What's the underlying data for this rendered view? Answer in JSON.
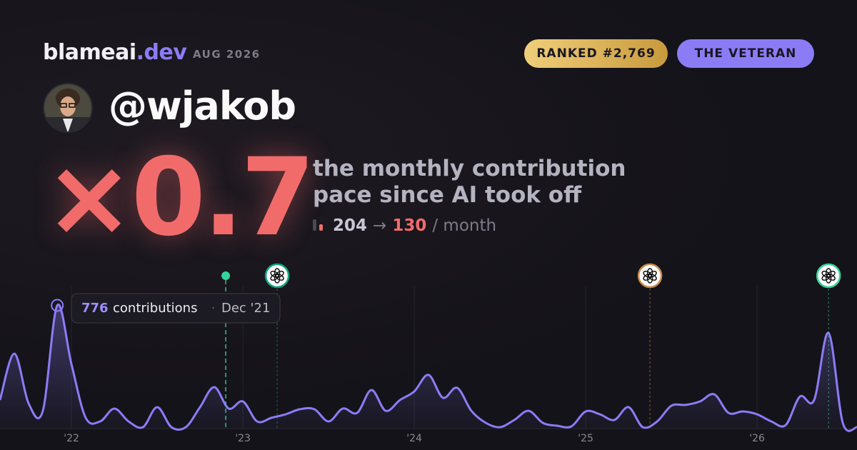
{
  "header": {
    "brand": "blameai",
    "brand_suffix": ".dev",
    "date": "AUG 2026",
    "rank": "RANKED #2,769",
    "tier": "THE VETERAN",
    "handle": "@wjakob"
  },
  "hero": {
    "multiplier": "×0.7",
    "line1": "the monthly contribution",
    "line2": "pace since AI took off",
    "before": 204,
    "arrow": "→",
    "after": 130,
    "unit": "/ month"
  },
  "chart_data": {
    "type": "area",
    "x": [
      2021.583,
      2021.667,
      2021.75,
      2021.833,
      2021.917,
      2022,
      2022.083,
      2022.167,
      2022.25,
      2022.333,
      2022.417,
      2022.5,
      2022.583,
      2022.667,
      2022.75,
      2022.833,
      2022.917,
      2023,
      2023.083,
      2023.167,
      2023.25,
      2023.333,
      2023.417,
      2023.5,
      2023.583,
      2023.667,
      2023.75,
      2023.833,
      2023.917,
      2024,
      2024.083,
      2024.167,
      2024.25,
      2024.333,
      2024.417,
      2024.5,
      2024.583,
      2024.667,
      2024.75,
      2024.833,
      2024.917,
      2025,
      2025.083,
      2025.167,
      2025.25,
      2025.333,
      2025.417,
      2025.5,
      2025.583,
      2025.667,
      2025.75,
      2025.833,
      2025.917,
      2026,
      2026.083,
      2026.167,
      2026.25,
      2026.333,
      2026.417,
      2026.5,
      2026.583
    ],
    "series": [
      {
        "name": "contributions",
        "color": "#8b7cf6",
        "values": [
          180,
          472,
          158,
          112,
          776,
          405,
          68,
          45,
          126,
          45,
          9,
          135,
          9,
          9,
          135,
          261,
          126,
          171,
          45,
          68,
          90,
          122,
          122,
          45,
          126,
          99,
          243,
          112,
          180,
          234,
          338,
          194,
          257,
          112,
          36,
          9,
          54,
          112,
          36,
          18,
          14,
          108,
          90,
          54,
          135,
          9,
          45,
          144,
          149,
          171,
          216,
          99,
          108,
          90,
          45,
          22,
          202,
          180,
          603,
          36,
          9
        ]
      }
    ],
    "xlim": [
      2021.583,
      2026.583
    ],
    "ylim": [
      0,
      900
    ],
    "xticks": [
      {
        "value": 2022,
        "label": "'22"
      },
      {
        "value": 2023,
        "label": "'23"
      },
      {
        "value": 2024,
        "label": "'24"
      },
      {
        "value": 2025,
        "label": "'25"
      },
      {
        "value": 2026,
        "label": "'26"
      }
    ],
    "markers": [
      {
        "x": 2022.9,
        "color": "#34d399"
      },
      {
        "x": 2023.2,
        "color": "#10a37f"
      },
      {
        "x": 2025.375,
        "color": "#c98a4b"
      },
      {
        "x": 2026.417,
        "color": "#34d399"
      }
    ],
    "tooltip": {
      "label": "contributions",
      "separator": "·",
      "date": "Dec '21"
    }
  }
}
